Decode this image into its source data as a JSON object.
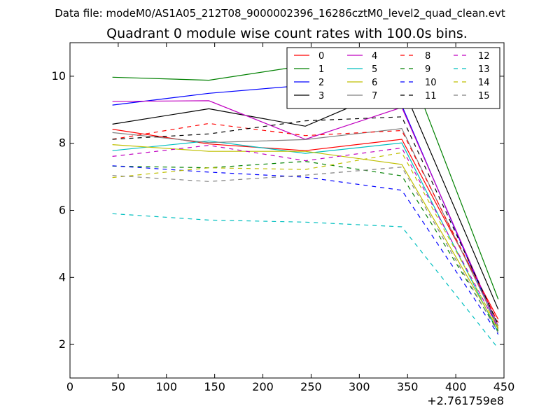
{
  "figure": {
    "suptitle": "Data file: modeM0/AS1A05_212T08_9000002396_16286cztM0_level2_quad_clean.evt"
  },
  "chart_data": {
    "type": "line",
    "title": "Quadrant 0 module wise count rates with 100.0s bins.",
    "xlabel": "",
    "ylabel": "",
    "x_offset_label": "+2.761759e8",
    "xlim": [
      0,
      450
    ],
    "ylim": [
      1,
      11
    ],
    "xticks": [
      0,
      50,
      100,
      150,
      200,
      250,
      300,
      350,
      400,
      450
    ],
    "yticks": [
      2,
      4,
      6,
      8,
      10
    ],
    "grid": false,
    "legend": {
      "position": "top-right",
      "columns": 4
    },
    "x": [
      44,
      144,
      244,
      344,
      444
    ],
    "series": [
      {
        "name": "0",
        "color": "#ff0000",
        "style": "solid",
        "values": [
          8.42,
          7.98,
          7.78,
          8.12,
          2.75
        ]
      },
      {
        "name": "1",
        "color": "#008000",
        "style": "solid",
        "values": [
          9.97,
          9.88,
          10.32,
          10.82,
          3.35
        ]
      },
      {
        "name": "2",
        "color": "#0000ff",
        "style": "solid",
        "values": [
          9.14,
          9.49,
          9.73,
          9.13,
          2.45
        ]
      },
      {
        "name": "3",
        "color": "#000000",
        "style": "solid",
        "values": [
          8.57,
          9.03,
          8.51,
          9.74,
          3.05
        ]
      },
      {
        "name": "4",
        "color": "#c000c0",
        "style": "solid",
        "values": [
          9.25,
          9.27,
          8.12,
          9.07,
          2.55
        ]
      },
      {
        "name": "5",
        "color": "#00bfbf",
        "style": "solid",
        "values": [
          7.78,
          8.07,
          7.7,
          8.01,
          2.35
        ]
      },
      {
        "name": "6",
        "color": "#bfbf00",
        "style": "solid",
        "values": [
          7.96,
          7.76,
          7.76,
          7.37,
          2.45
        ]
      },
      {
        "name": "7",
        "color": "#808080",
        "style": "solid",
        "values": [
          8.32,
          8.02,
          8.11,
          8.44,
          2.55
        ]
      },
      {
        "name": "8",
        "color": "#ff0000",
        "style": "dashed",
        "values": [
          8.12,
          8.59,
          8.23,
          8.38,
          2.65
        ]
      },
      {
        "name": "9",
        "color": "#008000",
        "style": "dashed",
        "values": [
          7.32,
          7.27,
          7.46,
          7.03,
          2.4
        ]
      },
      {
        "name": "10",
        "color": "#0000ff",
        "style": "dashed",
        "values": [
          7.33,
          7.14,
          6.99,
          6.6,
          2.3
        ]
      },
      {
        "name": "11",
        "color": "#000000",
        "style": "dashed",
        "values": [
          8.12,
          8.28,
          8.67,
          8.79,
          2.6
        ]
      },
      {
        "name": "12",
        "color": "#c000c0",
        "style": "dashed",
        "values": [
          7.61,
          7.94,
          7.48,
          7.86,
          2.5
        ]
      },
      {
        "name": "13",
        "color": "#00bfbf",
        "style": "dashed",
        "values": [
          5.9,
          5.71,
          5.65,
          5.51,
          1.88
        ]
      },
      {
        "name": "14",
        "color": "#bfbf00",
        "style": "dashed",
        "values": [
          6.98,
          7.27,
          7.22,
          7.72,
          2.5
        ]
      },
      {
        "name": "15",
        "color": "#808080",
        "style": "dashed",
        "values": [
          7.04,
          6.86,
          7.05,
          7.29,
          2.35
        ]
      }
    ]
  }
}
